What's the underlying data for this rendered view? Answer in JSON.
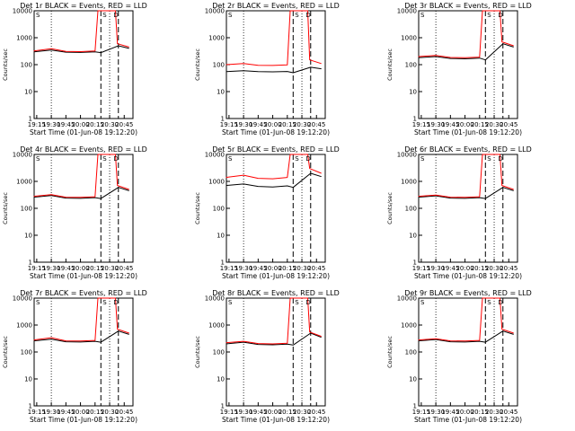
{
  "colors": {
    "events": "#000000",
    "lld": "#ff0000",
    "background": "#ffffff"
  },
  "chart_data": {
    "type": "line",
    "layout": "3x3 grid",
    "y_scale": "log",
    "ylim": [
      1,
      10000
    ],
    "y_ticks": [
      "1",
      "10",
      "100",
      "1000",
      "10000"
    ],
    "x_ticks": [
      "19:15",
      "19:30",
      "19:45",
      "20:00",
      "20:15",
      "20:30",
      "20:45"
    ],
    "xlim": [
      "19:12:20",
      "20:54:00"
    ],
    "xlabel": "Start Time (01-Jun-08 19:12:20)",
    "ylabel": "Counts/sec",
    "markers": {
      "dotted": [
        "19:30",
        "20:30"
      ],
      "dashed": [
        "20:21",
        "20:39"
      ]
    },
    "annotation_labels": [
      "S",
      "S",
      "D"
    ],
    "panels": [
      {
        "title": "Det 1r BLACK = Events, RED = LLD",
        "series": [
          {
            "name": "Events",
            "points": [
              [
                "19:12",
                300
              ],
              [
                "19:30",
                350
              ],
              [
                "19:45",
                290
              ],
              [
                "20:00",
                285
              ],
              [
                "20:15",
                300
              ],
              [
                "20:21",
                280
              ],
              [
                "20:39",
                500
              ],
              [
                "20:50",
                400
              ]
            ]
          },
          {
            "name": "LLD",
            "points": [
              [
                "19:12",
                320
              ],
              [
                "19:30",
                390
              ],
              [
                "19:45",
                310
              ],
              [
                "20:00",
                305
              ],
              [
                "20:15",
                320
              ],
              [
                "20:18",
                10000
              ],
              [
                "20:21",
                10000
              ],
              [
                "20:36",
                10000
              ],
              [
                "20:38",
                600
              ],
              [
                "20:50",
                450
              ]
            ]
          }
        ]
      },
      {
        "title": "Det 2r BLACK = Events, RED = LLD",
        "series": [
          {
            "name": "Events",
            "points": [
              [
                "19:12",
                55
              ],
              [
                "19:30",
                60
              ],
              [
                "19:45",
                55
              ],
              [
                "20:00",
                54
              ],
              [
                "20:15",
                56
              ],
              [
                "20:21",
                50
              ],
              [
                "20:39",
                80
              ],
              [
                "20:50",
                70
              ]
            ]
          },
          {
            "name": "LLD",
            "points": [
              [
                "19:12",
                100
              ],
              [
                "19:30",
                110
              ],
              [
                "19:45",
                95
              ],
              [
                "20:00",
                93
              ],
              [
                "20:15",
                98
              ],
              [
                "20:18",
                10000
              ],
              [
                "20:21",
                10000
              ],
              [
                "20:36",
                10000
              ],
              [
                "20:38",
                150
              ],
              [
                "20:50",
                110
              ]
            ]
          }
        ]
      },
      {
        "title": "Det 3r BLACK = Events, RED = LLD",
        "series": [
          {
            "name": "Events",
            "points": [
              [
                "19:12",
                180
              ],
              [
                "19:30",
                200
              ],
              [
                "19:45",
                170
              ],
              [
                "20:00",
                165
              ],
              [
                "20:15",
                175
              ],
              [
                "20:21",
                150
              ],
              [
                "20:39",
                600
              ],
              [
                "20:50",
                450
              ]
            ]
          },
          {
            "name": "LLD",
            "points": [
              [
                "19:12",
                200
              ],
              [
                "19:30",
                220
              ],
              [
                "19:45",
                185
              ],
              [
                "20:00",
                180
              ],
              [
                "20:15",
                190
              ],
              [
                "20:18",
                10000
              ],
              [
                "20:21",
                10000
              ],
              [
                "20:36",
                10000
              ],
              [
                "20:38",
                700
              ],
              [
                "20:50",
                500
              ]
            ]
          }
        ]
      },
      {
        "title": "Det 4r BLACK = Events, RED = LLD",
        "series": [
          {
            "name": "Events",
            "points": [
              [
                "19:12",
                260
              ],
              [
                "19:30",
                300
              ],
              [
                "19:45",
                240
              ],
              [
                "20:00",
                235
              ],
              [
                "20:15",
                250
              ],
              [
                "20:21",
                230
              ],
              [
                "20:39",
                600
              ],
              [
                "20:50",
                450
              ]
            ]
          },
          {
            "name": "LLD",
            "points": [
              [
                "19:12",
                280
              ],
              [
                "19:30",
                320
              ],
              [
                "19:45",
                260
              ],
              [
                "20:00",
                255
              ],
              [
                "20:15",
                270
              ],
              [
                "20:18",
                10000
              ],
              [
                "20:21",
                10000
              ],
              [
                "20:36",
                10000
              ],
              [
                "20:38",
                700
              ],
              [
                "20:50",
                500
              ]
            ]
          }
        ]
      },
      {
        "title": "Det 5r BLACK = Events, RED = LLD",
        "series": [
          {
            "name": "Events",
            "points": [
              [
                "19:12",
                700
              ],
              [
                "19:30",
                800
              ],
              [
                "19:45",
                650
              ],
              [
                "20:00",
                620
              ],
              [
                "20:15",
                680
              ],
              [
                "20:21",
                600
              ],
              [
                "20:39",
                2000
              ],
              [
                "20:50",
                1500
              ]
            ]
          },
          {
            "name": "LLD",
            "points": [
              [
                "19:12",
                1400
              ],
              [
                "19:30",
                1700
              ],
              [
                "19:45",
                1300
              ],
              [
                "20:00",
                1250
              ],
              [
                "20:15",
                1400
              ],
              [
                "20:18",
                10000
              ],
              [
                "20:21",
                10000
              ],
              [
                "20:36",
                10000
              ],
              [
                "20:38",
                3000
              ],
              [
                "20:50",
                2000
              ]
            ]
          }
        ]
      },
      {
        "title": "Det 6r BLACK = Events, RED = LLD",
        "series": [
          {
            "name": "Events",
            "points": [
              [
                "19:12",
                260
              ],
              [
                "19:30",
                290
              ],
              [
                "19:45",
                240
              ],
              [
                "20:00",
                235
              ],
              [
                "20:15",
                250
              ],
              [
                "20:21",
                230
              ],
              [
                "20:39",
                600
              ],
              [
                "20:50",
                450
              ]
            ]
          },
          {
            "name": "LLD",
            "points": [
              [
                "19:12",
                280
              ],
              [
                "19:30",
                310
              ],
              [
                "19:45",
                260
              ],
              [
                "20:00",
                255
              ],
              [
                "20:15",
                270
              ],
              [
                "20:18",
                10000
              ],
              [
                "20:21",
                10000
              ],
              [
                "20:36",
                10000
              ],
              [
                "20:38",
                700
              ],
              [
                "20:50",
                500
              ]
            ]
          }
        ]
      },
      {
        "title": "Det 7r BLACK = Events, RED = LLD",
        "series": [
          {
            "name": "Events",
            "points": [
              [
                "19:12",
                260
              ],
              [
                "19:30",
                300
              ],
              [
                "19:45",
                240
              ],
              [
                "20:00",
                235
              ],
              [
                "20:15",
                250
              ],
              [
                "20:21",
                230
              ],
              [
                "20:39",
                600
              ],
              [
                "20:50",
                450
              ]
            ]
          },
          {
            "name": "LLD",
            "points": [
              [
                "19:12",
                280
              ],
              [
                "19:30",
                340
              ],
              [
                "19:45",
                260
              ],
              [
                "20:00",
                255
              ],
              [
                "20:15",
                270
              ],
              [
                "20:18",
                10000
              ],
              [
                "20:21",
                10000
              ],
              [
                "20:36",
                10000
              ],
              [
                "20:38",
                700
              ],
              [
                "20:50",
                500
              ]
            ]
          }
        ]
      },
      {
        "title": "Det 8r BLACK = Events, RED = LLD",
        "series": [
          {
            "name": "Events",
            "points": [
              [
                "19:12",
                200
              ],
              [
                "19:30",
                230
              ],
              [
                "19:45",
                190
              ],
              [
                "20:00",
                185
              ],
              [
                "20:15",
                195
              ],
              [
                "20:21",
                180
              ],
              [
                "20:39",
                500
              ],
              [
                "20:50",
                350
              ]
            ]
          },
          {
            "name": "LLD",
            "points": [
              [
                "19:12",
                220
              ],
              [
                "19:30",
                250
              ],
              [
                "19:45",
                205
              ],
              [
                "20:00",
                200
              ],
              [
                "20:15",
                210
              ],
              [
                "20:18",
                10000
              ],
              [
                "20:21",
                10000
              ],
              [
                "20:36",
                10000
              ],
              [
                "20:38",
                550
              ],
              [
                "20:50",
                380
              ]
            ]
          }
        ]
      },
      {
        "title": "Det 9r BLACK = Events, RED = LLD",
        "series": [
          {
            "name": "Events",
            "points": [
              [
                "19:12",
                260
              ],
              [
                "19:30",
                290
              ],
              [
                "19:45",
                240
              ],
              [
                "20:00",
                235
              ],
              [
                "20:15",
                250
              ],
              [
                "20:21",
                230
              ],
              [
                "20:39",
                600
              ],
              [
                "20:50",
                450
              ]
            ]
          },
          {
            "name": "LLD",
            "points": [
              [
                "19:12",
                280
              ],
              [
                "19:30",
                310
              ],
              [
                "19:45",
                260
              ],
              [
                "20:00",
                255
              ],
              [
                "20:15",
                270
              ],
              [
                "20:18",
                10000
              ],
              [
                "20:21",
                10000
              ],
              [
                "20:36",
                10000
              ],
              [
                "20:38",
                700
              ],
              [
                "20:50",
                500
              ]
            ]
          }
        ]
      }
    ]
  }
}
